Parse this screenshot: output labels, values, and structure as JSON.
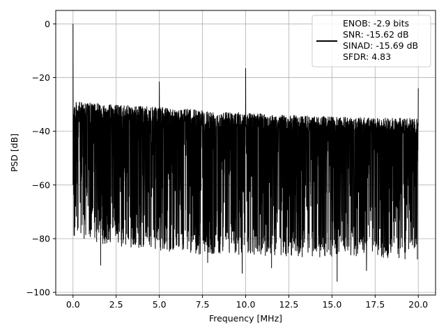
{
  "chart_data": {
    "type": "line",
    "title": "",
    "xlabel": "Frequency [MHz]",
    "ylabel": "PSD [dB]",
    "xlim": [
      -1.0,
      21.0
    ],
    "ylim": [
      -101.0,
      5.0
    ],
    "xticks": [
      0.0,
      2.5,
      5.0,
      7.5,
      10.0,
      12.5,
      15.0,
      17.5,
      20.0
    ],
    "xtick_labels": [
      "0.0",
      "2.5",
      "5.0",
      "7.5",
      "10.0",
      "12.5",
      "15.0",
      "17.5",
      "20.0"
    ],
    "yticks": [
      0,
      -20,
      -40,
      -60,
      -80,
      -100
    ],
    "ytick_labels": [
      "0",
      "−20",
      "−40",
      "−60",
      "−80",
      "−100"
    ],
    "grid": true,
    "legend_position": "top-right",
    "legend": [
      "ENOB: -2.9 bits",
      "SNR: -15.62 dB",
      "SINAD: -15.69 dB",
      "SFDR: 4.83"
    ],
    "series": [
      {
        "color": "#000000",
        "noise_floor_top_db": [
          [
            0.2,
            -29
          ],
          [
            2.5,
            -30
          ],
          [
            5.0,
            -31
          ],
          [
            7.5,
            -32
          ],
          [
            10.0,
            -33
          ],
          [
            12.5,
            -34
          ],
          [
            15.0,
            -34.5
          ],
          [
            17.5,
            -35
          ],
          [
            20.0,
            -35
          ]
        ],
        "noise_floor_bottom_db": [
          [
            0.2,
            -72
          ],
          [
            2.5,
            -75
          ],
          [
            5.0,
            -77
          ],
          [
            7.5,
            -78
          ],
          [
            10.0,
            -78
          ],
          [
            12.5,
            -79
          ],
          [
            15.0,
            -79
          ],
          [
            17.5,
            -79
          ],
          [
            20.0,
            -80
          ]
        ],
        "peaks": [
          {
            "x": 0.0,
            "y": 0.0
          },
          {
            "x": 5.0,
            "y": -21.5
          },
          {
            "x": 10.0,
            "y": -16.5
          },
          {
            "x": 20.0,
            "y": -24.0
          }
        ],
        "deep_dips": [
          {
            "x": 1.6,
            "y": -90.0
          },
          {
            "x": 7.8,
            "y": -89.0
          },
          {
            "x": 9.8,
            "y": -93.0
          },
          {
            "x": 11.5,
            "y": -91.0
          },
          {
            "x": 15.3,
            "y": -96.0
          },
          {
            "x": 17.0,
            "y": -92.0
          }
        ]
      }
    ]
  }
}
